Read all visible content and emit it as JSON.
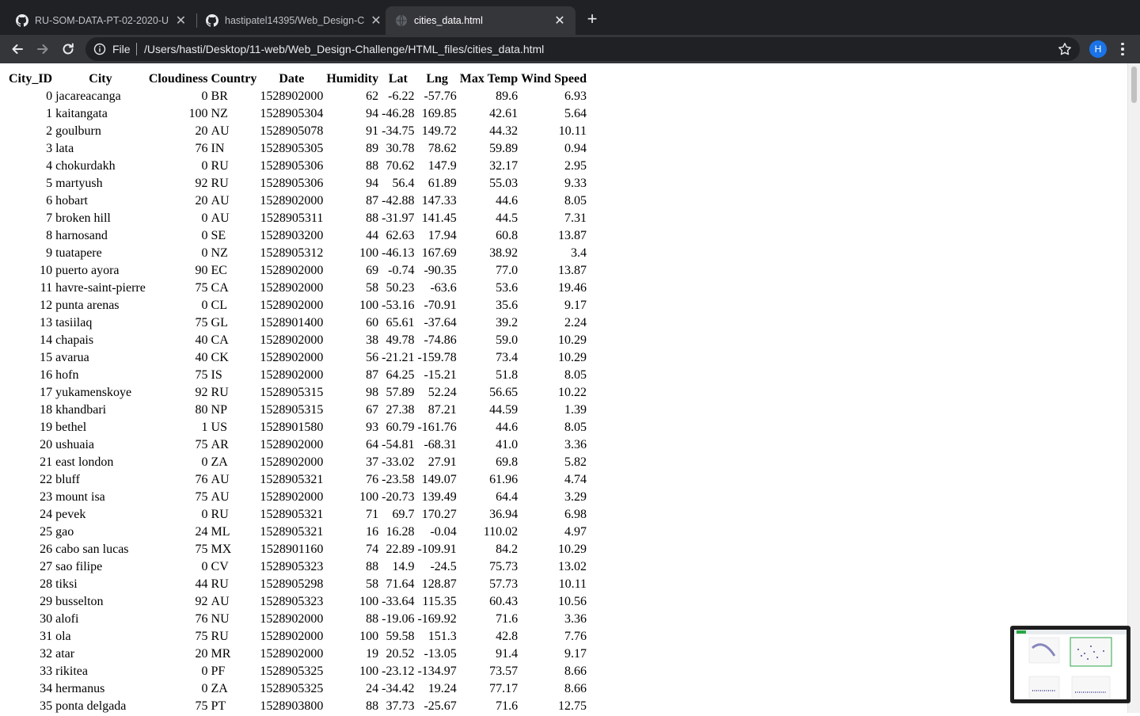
{
  "browser": {
    "tabs": [
      {
        "title": "RU-SOM-DATA-PT-02-2020-U",
        "icon": "github-icon",
        "active": false
      },
      {
        "title": "hastipatel14395/Web_Design-C",
        "icon": "github-icon",
        "active": false
      },
      {
        "title": "cities_data.html",
        "icon": "globe-icon",
        "active": true
      }
    ],
    "address": {
      "scheme_label": "File",
      "url": "/Users/hasti/Desktop/11-web/Web_Design-Challenge/HTML_files/cities_data.html"
    },
    "profile_initial": "H"
  },
  "table": {
    "headers": [
      "City_ID",
      "City",
      "Cloudiness",
      "Country",
      "Date",
      "Humidity",
      "Lat",
      "Lng",
      "Max Temp",
      "Wind Speed"
    ],
    "rows": [
      [
        "0",
        "jacareacanga",
        "0",
        "BR",
        "1528902000",
        "62",
        "-6.22",
        "-57.76",
        "89.6",
        "6.93"
      ],
      [
        "1",
        "kaitangata",
        "100",
        "NZ",
        "1528905304",
        "94",
        "-46.28",
        "169.85",
        "42.61",
        "5.64"
      ],
      [
        "2",
        "goulburn",
        "20",
        "AU",
        "1528905078",
        "91",
        "-34.75",
        "149.72",
        "44.32",
        "10.11"
      ],
      [
        "3",
        "lata",
        "76",
        "IN",
        "1528905305",
        "89",
        "30.78",
        "78.62",
        "59.89",
        "0.94"
      ],
      [
        "4",
        "chokurdakh",
        "0",
        "RU",
        "1528905306",
        "88",
        "70.62",
        "147.9",
        "32.17",
        "2.95"
      ],
      [
        "5",
        "martyush",
        "92",
        "RU",
        "1528905306",
        "94",
        "56.4",
        "61.89",
        "55.03",
        "9.33"
      ],
      [
        "6",
        "hobart",
        "20",
        "AU",
        "1528902000",
        "87",
        "-42.88",
        "147.33",
        "44.6",
        "8.05"
      ],
      [
        "7",
        "broken hill",
        "0",
        "AU",
        "1528905311",
        "88",
        "-31.97",
        "141.45",
        "44.5",
        "7.31"
      ],
      [
        "8",
        "harnosand",
        "0",
        "SE",
        "1528903200",
        "44",
        "62.63",
        "17.94",
        "60.8",
        "13.87"
      ],
      [
        "9",
        "tuatapere",
        "0",
        "NZ",
        "1528905312",
        "100",
        "-46.13",
        "167.69",
        "38.92",
        "3.4"
      ],
      [
        "10",
        "puerto ayora",
        "90",
        "EC",
        "1528902000",
        "69",
        "-0.74",
        "-90.35",
        "77.0",
        "13.87"
      ],
      [
        "11",
        "havre-saint-pierre",
        "75",
        "CA",
        "1528902000",
        "58",
        "50.23",
        "-63.6",
        "53.6",
        "19.46"
      ],
      [
        "12",
        "punta arenas",
        "0",
        "CL",
        "1528902000",
        "100",
        "-53.16",
        "-70.91",
        "35.6",
        "9.17"
      ],
      [
        "13",
        "tasiilaq",
        "75",
        "GL",
        "1528901400",
        "60",
        "65.61",
        "-37.64",
        "39.2",
        "2.24"
      ],
      [
        "14",
        "chapais",
        "40",
        "CA",
        "1528902000",
        "38",
        "49.78",
        "-74.86",
        "59.0",
        "10.29"
      ],
      [
        "15",
        "avarua",
        "40",
        "CK",
        "1528902000",
        "56",
        "-21.21",
        "-159.78",
        "73.4",
        "10.29"
      ],
      [
        "16",
        "hofn",
        "75",
        "IS",
        "1528902000",
        "87",
        "64.25",
        "-15.21",
        "51.8",
        "8.05"
      ],
      [
        "17",
        "yukamenskoye",
        "92",
        "RU",
        "1528905315",
        "98",
        "57.89",
        "52.24",
        "56.65",
        "10.22"
      ],
      [
        "18",
        "khandbari",
        "80",
        "NP",
        "1528905315",
        "67",
        "27.38",
        "87.21",
        "44.59",
        "1.39"
      ],
      [
        "19",
        "bethel",
        "1",
        "US",
        "1528901580",
        "93",
        "60.79",
        "-161.76",
        "44.6",
        "8.05"
      ],
      [
        "20",
        "ushuaia",
        "75",
        "AR",
        "1528902000",
        "64",
        "-54.81",
        "-68.31",
        "41.0",
        "3.36"
      ],
      [
        "21",
        "east london",
        "0",
        "ZA",
        "1528902000",
        "37",
        "-33.02",
        "27.91",
        "69.8",
        "5.82"
      ],
      [
        "22",
        "bluff",
        "76",
        "AU",
        "1528905321",
        "76",
        "-23.58",
        "149.07",
        "61.96",
        "4.74"
      ],
      [
        "23",
        "mount isa",
        "75",
        "AU",
        "1528902000",
        "100",
        "-20.73",
        "139.49",
        "64.4",
        "3.29"
      ],
      [
        "24",
        "pevek",
        "0",
        "RU",
        "1528905321",
        "71",
        "69.7",
        "170.27",
        "36.94",
        "6.98"
      ],
      [
        "25",
        "gao",
        "24",
        "ML",
        "1528905321",
        "16",
        "16.28",
        "-0.04",
        "110.02",
        "4.97"
      ],
      [
        "26",
        "cabo san lucas",
        "75",
        "MX",
        "1528901160",
        "74",
        "22.89",
        "-109.91",
        "84.2",
        "10.29"
      ],
      [
        "27",
        "sao filipe",
        "0",
        "CV",
        "1528905323",
        "88",
        "14.9",
        "-24.5",
        "75.73",
        "13.02"
      ],
      [
        "28",
        "tiksi",
        "44",
        "RU",
        "1528905298",
        "58",
        "71.64",
        "128.87",
        "57.73",
        "10.11"
      ],
      [
        "29",
        "busselton",
        "92",
        "AU",
        "1528905323",
        "100",
        "-33.64",
        "115.35",
        "60.43",
        "10.56"
      ],
      [
        "30",
        "alofi",
        "76",
        "NU",
        "1528902000",
        "88",
        "-19.06",
        "-169.92",
        "71.6",
        "3.36"
      ],
      [
        "31",
        "ola",
        "75",
        "RU",
        "1528902000",
        "100",
        "59.58",
        "151.3",
        "42.8",
        "7.76"
      ],
      [
        "32",
        "atar",
        "20",
        "MR",
        "1528902000",
        "19",
        "20.52",
        "-13.05",
        "91.4",
        "9.17"
      ],
      [
        "33",
        "rikitea",
        "0",
        "PF",
        "1528905325",
        "100",
        "-23.12",
        "-134.97",
        "73.57",
        "8.66"
      ],
      [
        "34",
        "hermanus",
        "0",
        "ZA",
        "1528905325",
        "24",
        "-34.42",
        "19.24",
        "77.17",
        "8.66"
      ],
      [
        "35",
        "ponta delgada",
        "75",
        "PT",
        "1528903800",
        "88",
        "37.73",
        "-25.67",
        "71.6",
        "12.75"
      ]
    ]
  }
}
